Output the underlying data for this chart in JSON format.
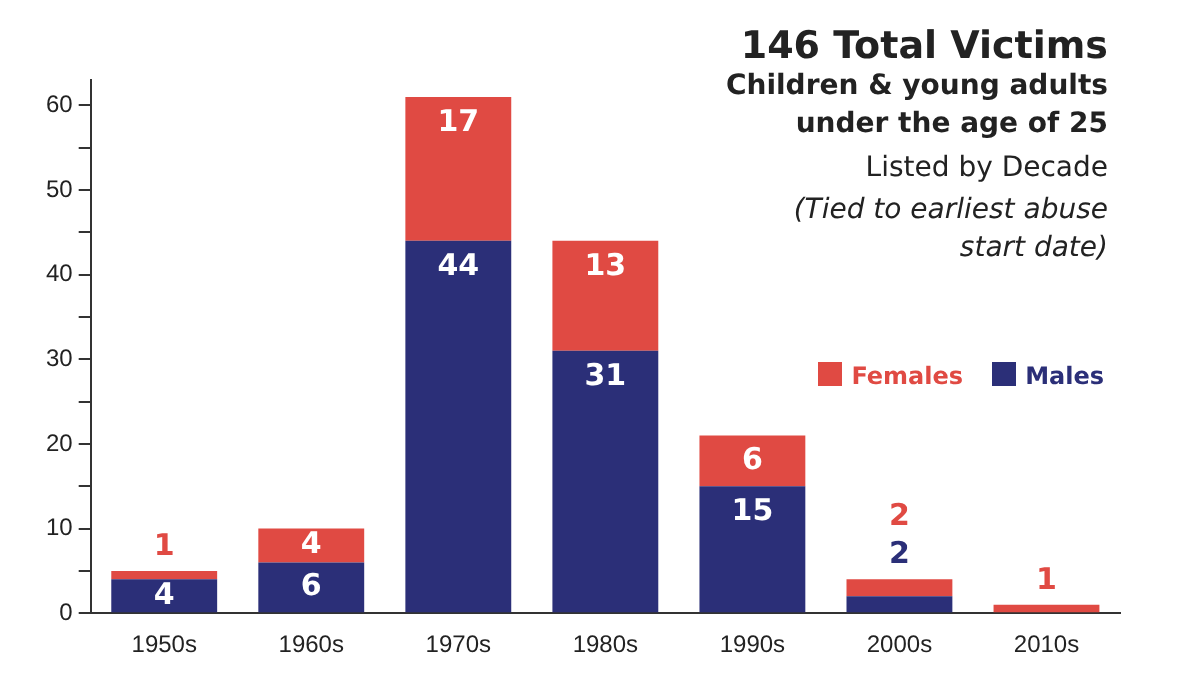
{
  "chart_data": {
    "type": "bar",
    "stacked": true,
    "title": "146 Total Victims",
    "subtitle": "Children & young adults under the age of 25",
    "annotations": [
      "Listed by Decade",
      "(Tied to earliest abuse start date)"
    ],
    "categories": [
      "1950s",
      "1960s",
      "1970s",
      "1980s",
      "1990s",
      "2000s",
      "2010s"
    ],
    "series": [
      {
        "name": "Males",
        "color": "#2b2f78",
        "values": [
          4,
          6,
          44,
          31,
          15,
          2,
          0
        ],
        "value_labels": [
          "4",
          "6",
          "44",
          "31",
          "15",
          "2",
          null
        ]
      },
      {
        "name": "Females",
        "color": "#e04a43",
        "values": [
          1,
          4,
          17,
          13,
          6,
          2,
          1
        ],
        "value_labels": [
          "1",
          "4",
          "17",
          "13",
          "6",
          "2",
          "1"
        ]
      }
    ],
    "ylim": [
      0,
      63
    ],
    "yticks": [
      0,
      {
        "value": 5,
        "label": null
      },
      10,
      {
        "value": 15,
        "label": null
      },
      20,
      {
        "value": 25,
        "label": null
      },
      30,
      {
        "value": 35,
        "label": null
      },
      40,
      {
        "value": 45,
        "label": null
      },
      50,
      {
        "value": 55,
        "label": null
      },
      60
    ],
    "grid": false,
    "legend": "right"
  }
}
